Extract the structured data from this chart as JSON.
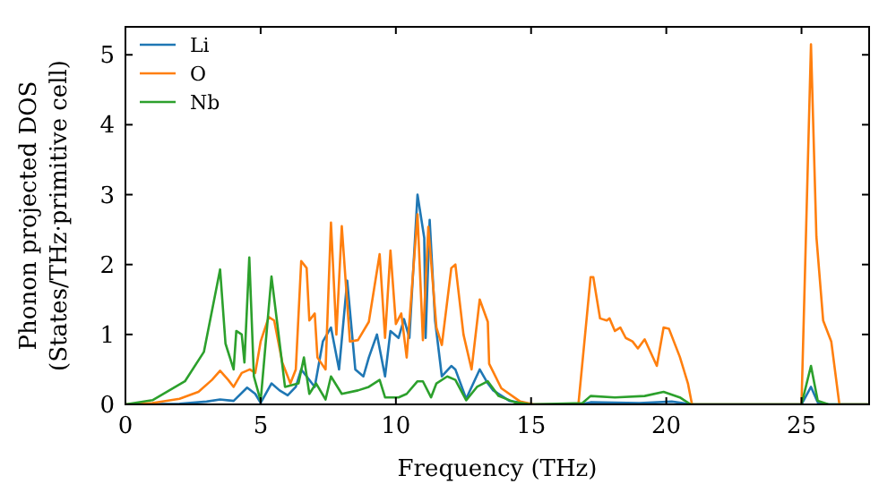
{
  "chart_data": {
    "type": "line",
    "xlabel": "Frequency (THz)",
    "ylabel": "Phonon projected DOS\n(States/THz·primitive cell)",
    "xlim": [
      0,
      27.5
    ],
    "ylim": [
      0,
      5.4
    ],
    "xticks": [
      0,
      5,
      10,
      15,
      20,
      25
    ],
    "yticks": [
      0,
      1,
      2,
      3,
      4,
      5
    ],
    "legend": "top left",
    "series": [
      {
        "name": "Li",
        "color": "#1f77b4",
        "x": [
          0,
          2,
          3,
          3.5,
          4,
          4.5,
          4.8,
          5.0,
          5.4,
          5.7,
          6.0,
          6.3,
          6.5,
          6.7,
          7.0,
          7.3,
          7.6,
          7.9,
          8.2,
          8.5,
          8.8,
          9.0,
          9.3,
          9.6,
          9.8,
          10.1,
          10.3,
          10.5,
          10.8,
          11.05,
          11.1,
          11.25,
          11.45,
          11.7,
          12.05,
          12.2,
          12.6,
          13.1,
          13.4,
          13.6,
          14.2,
          15,
          16.8,
          17.2,
          19,
          20.2,
          21,
          25,
          25.35,
          25.6,
          26,
          27.5
        ],
        "values": [
          0,
          0.01,
          0.04,
          0.07,
          0.05,
          0.24,
          0.15,
          0.02,
          0.3,
          0.2,
          0.13,
          0.25,
          0.5,
          0.4,
          0.25,
          0.9,
          1.1,
          0.5,
          1.77,
          0.5,
          0.4,
          0.67,
          1.0,
          0.4,
          1.05,
          0.95,
          1.22,
          0.95,
          3.0,
          2.38,
          0.95,
          2.64,
          1.2,
          0.4,
          0.55,
          0.5,
          0.08,
          0.5,
          0.3,
          0.2,
          0.05,
          0,
          0,
          0.03,
          0.02,
          0.04,
          0,
          0,
          0.25,
          0.03,
          0,
          0
        ]
      },
      {
        "name": "O",
        "color": "#ff7f0e",
        "x": [
          0,
          1,
          2,
          2.7,
          3.2,
          3.5,
          3.8,
          4.0,
          4.3,
          4.6,
          4.8,
          5.0,
          5.3,
          5.5,
          5.8,
          6.1,
          6.3,
          6.5,
          6.7,
          6.8,
          7.0,
          7.1,
          7.4,
          7.6,
          7.8,
          8.0,
          8.3,
          8.6,
          9.0,
          9.4,
          9.6,
          9.8,
          10.0,
          10.2,
          10.4,
          10.8,
          11.0,
          11.2,
          11.5,
          11.7,
          12.05,
          12.2,
          12.5,
          12.8,
          13.1,
          13.4,
          13.45,
          13.9,
          14.6,
          15.1,
          16.75,
          17.2,
          17.3,
          17.55,
          17.8,
          17.9,
          18.1,
          18.3,
          18.5,
          18.75,
          18.95,
          19.2,
          19.65,
          19.9,
          20.1,
          20.5,
          20.8,
          20.95,
          25.0,
          25.35,
          25.55,
          25.8,
          26.1,
          26.4,
          27.5
        ],
        "values": [
          0,
          0.02,
          0.08,
          0.18,
          0.35,
          0.48,
          0.35,
          0.25,
          0.45,
          0.5,
          0.45,
          0.9,
          1.25,
          1.2,
          0.6,
          0.3,
          0.5,
          2.05,
          1.95,
          1.2,
          1.3,
          0.67,
          0.5,
          2.6,
          1.0,
          2.55,
          0.9,
          0.92,
          1.18,
          2.15,
          0.95,
          2.2,
          1.15,
          1.3,
          0.67,
          2.72,
          0.92,
          2.54,
          1.1,
          0.85,
          1.95,
          2.0,
          1.0,
          0.5,
          1.5,
          1.18,
          0.58,
          0.23,
          0.04,
          0,
          0,
          1.82,
          1.82,
          1.23,
          1.2,
          1.23,
          1.05,
          1.1,
          0.95,
          0.9,
          0.8,
          0.93,
          0.55,
          1.1,
          1.08,
          0.68,
          0.3,
          0,
          0,
          5.15,
          2.4,
          1.2,
          0.9,
          0,
          0
        ]
      },
      {
        "name": "Nb",
        "color": "#2ca02c",
        "x": [
          0,
          1,
          2.2,
          2.9,
          3.5,
          3.7,
          4.0,
          4.1,
          4.3,
          4.4,
          4.58,
          4.75,
          5.0,
          5.4,
          5.6,
          5.9,
          6.4,
          6.6,
          6.8,
          7.05,
          7.4,
          7.6,
          8.0,
          8.6,
          9.0,
          9.4,
          9.6,
          10.1,
          10.4,
          10.8,
          11.0,
          11.3,
          11.5,
          11.9,
          12.2,
          12.6,
          13.0,
          13.4,
          13.8,
          14.4,
          15,
          16.9,
          17.2,
          18.1,
          19.2,
          19.9,
          20.5,
          20.9,
          25.0,
          25.35,
          25.6,
          26,
          27.5
        ],
        "values": [
          0,
          0.06,
          0.33,
          0.75,
          1.93,
          0.87,
          0.5,
          1.05,
          1.0,
          0.6,
          2.1,
          0.4,
          0.05,
          1.83,
          1.2,
          0.25,
          0.3,
          0.67,
          0.15,
          0.3,
          0.07,
          0.4,
          0.15,
          0.2,
          0.25,
          0.35,
          0.1,
          0.1,
          0.15,
          0.33,
          0.33,
          0.1,
          0.3,
          0.4,
          0.35,
          0.06,
          0.25,
          0.33,
          0.12,
          0.03,
          0,
          0.02,
          0.12,
          0.1,
          0.12,
          0.18,
          0.1,
          0,
          0,
          0.55,
          0.05,
          0,
          0
        ]
      }
    ]
  }
}
